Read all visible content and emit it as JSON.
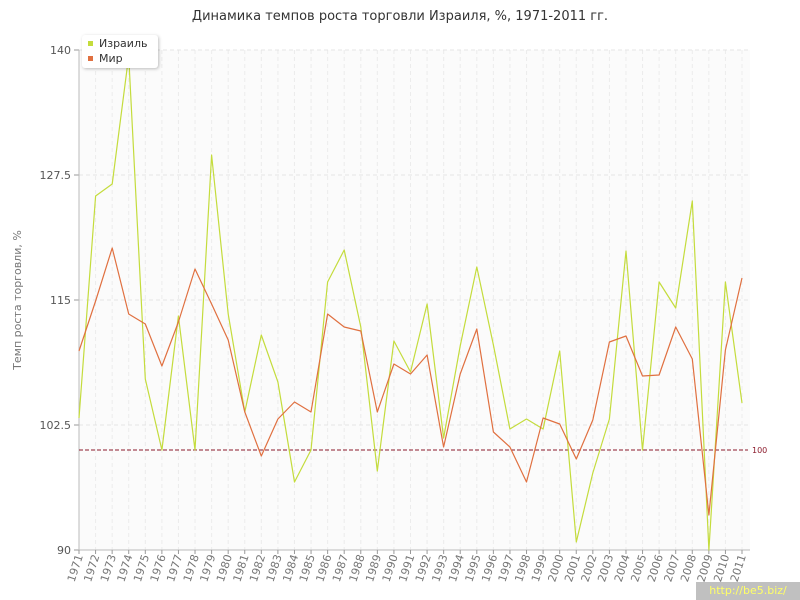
{
  "chart_data": {
    "type": "line",
    "title": "Динамика темпов роста торговли Израиля, %, 1971-2011 гг.",
    "ylabel": "Темп роста торговли, %",
    "xlabel": "",
    "ylim": [
      90,
      140
    ],
    "yticks": [
      "90",
      "102.5",
      "115",
      "127.5",
      "140"
    ],
    "grid": true,
    "legend_position": "top-left",
    "x": [
      "1971",
      "1972",
      "1973",
      "1974",
      "1975",
      "1976",
      "1977",
      "1978",
      "1979",
      "1980",
      "1981",
      "1982",
      "1983",
      "1984",
      "1985",
      "1986",
      "1987",
      "1988",
      "1989",
      "1990",
      "1991",
      "1992",
      "1993",
      "1994",
      "1995",
      "1996",
      "1997",
      "1998",
      "1999",
      "2000",
      "2001",
      "2002",
      "2003",
      "2004",
      "2005",
      "2006",
      "2007",
      "2008",
      "2009",
      "2010",
      "2011"
    ],
    "series": [
      {
        "name": "Израиль",
        "color": "#c4dc3c",
        "values": [
          103.2,
          125.4,
          126.6,
          139.4,
          107.1,
          100.0,
          113.4,
          100.0,
          129.5,
          113.6,
          103.8,
          111.5,
          106.8,
          96.8,
          100.0,
          116.8,
          120.0,
          112.3,
          97.9,
          110.9,
          107.8,
          114.6,
          101.2,
          110.4,
          118.3,
          110.5,
          102.1,
          103.1,
          102.1,
          109.9,
          90.8,
          97.7,
          103.1,
          119.9,
          100.0,
          116.8,
          114.2,
          124.9,
          90.0,
          116.8,
          104.7
        ]
      },
      {
        "name": "Мир",
        "color": "#e07040",
        "values": [
          109.9,
          114.9,
          120.2,
          113.6,
          112.6,
          108.4,
          112.8,
          118.1,
          114.6,
          111.0,
          103.8,
          99.4,
          103.1,
          104.8,
          103.8,
          113.6,
          112.3,
          111.9,
          103.8,
          108.6,
          107.6,
          109.5,
          100.3,
          107.6,
          112.1,
          101.8,
          100.3,
          96.8,
          103.2,
          102.6,
          99.1,
          103.0,
          110.8,
          111.4,
          107.4,
          107.5,
          112.3,
          109.1,
          93.5,
          110.0,
          117.2
        ]
      }
    ],
    "reference_line": {
      "value": 100,
      "label": "100",
      "color": "#8b1a2b"
    }
  },
  "watermark": "http://be5.biz/"
}
